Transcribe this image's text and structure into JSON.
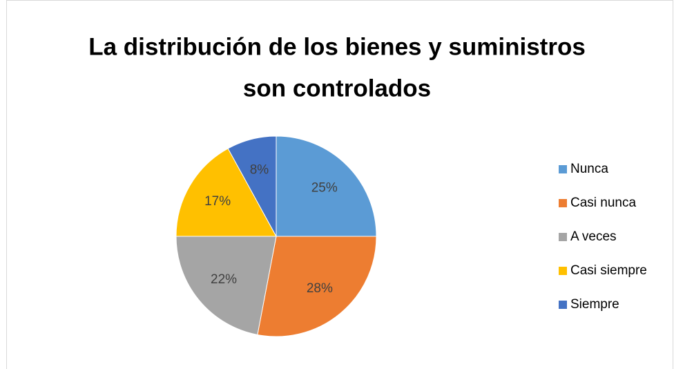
{
  "chart_data": {
    "type": "pie",
    "title": [
      "La distribución de los bienes y suministros",
      "son controlados"
    ],
    "categories": [
      "Nunca",
      "Casi nunca",
      "A veces",
      "Casi siempre",
      "Siempre"
    ],
    "values": [
      25,
      28,
      22,
      17,
      8
    ],
    "value_labels": [
      "25%",
      "28%",
      "22%",
      "17%",
      "8%"
    ],
    "colors": [
      "#5b9bd5",
      "#ed7d31",
      "#a5a5a5",
      "#ffc000",
      "#4472c4"
    ],
    "legend": "right"
  }
}
